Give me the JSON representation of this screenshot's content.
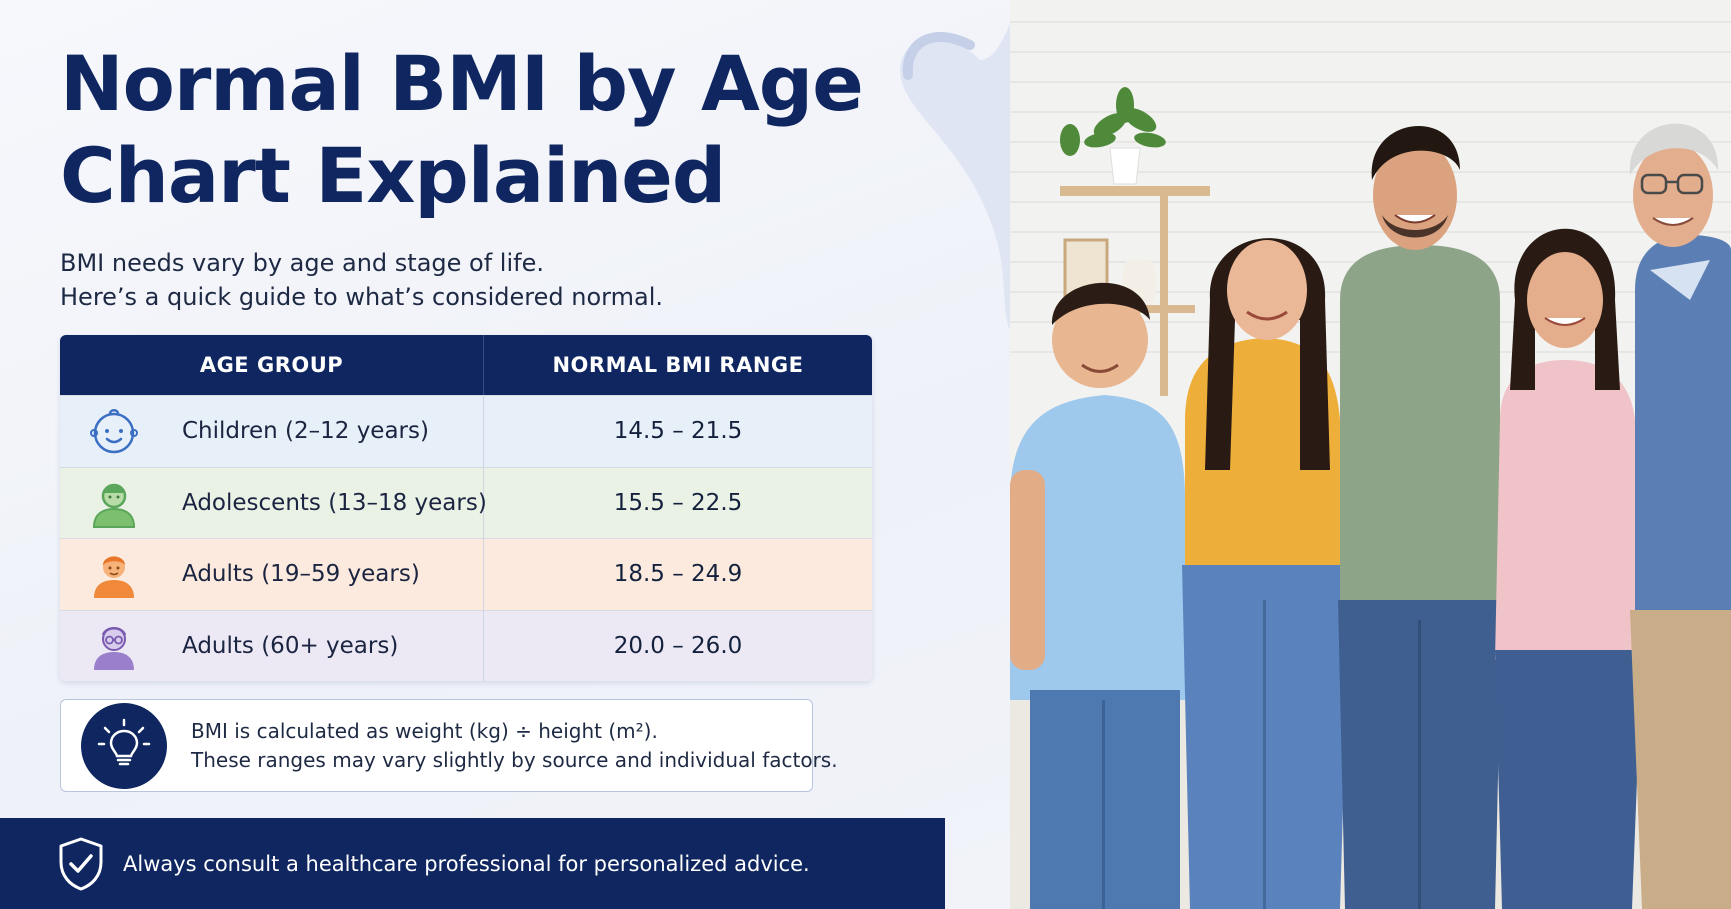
{
  "title_line1": "Normal BMI by Age",
  "title_line2": "Chart Explained",
  "subtitle_line1": "BMI needs vary by age and stage of life.",
  "subtitle_line2": "Here’s a quick guide to what’s considered normal.",
  "table": {
    "headers": [
      "AGE GROUP",
      "NORMAL BMI RANGE"
    ],
    "rows": [
      {
        "label": "Children (2–12 years)",
        "range": "14.5 – 21.5",
        "icon": "baby-face-icon",
        "color": "#3b6fc4"
      },
      {
        "label": "Adolescents (13–18 years)",
        "range": "15.5 – 22.5",
        "icon": "teen-person-icon",
        "color": "#5aa65a"
      },
      {
        "label": "Adults (19–59 years)",
        "range": "18.5 – 24.9",
        "icon": "adult-person-icon",
        "color": "#f08a3a"
      },
      {
        "label": "Adults (60+ years)",
        "range": "20.0 – 26.0",
        "icon": "senior-person-icon",
        "color": "#7a5bb0"
      }
    ]
  },
  "note": {
    "icon": "lightbulb-icon",
    "line1": "BMI is calculated as weight (kg) ÷ height (m²).",
    "line2": "These ranges may vary slightly by source and individual factors."
  },
  "footer": {
    "icon": "shield-check-icon",
    "text": "Always consult a healthcare professional for personalized advice."
  },
  "colors": {
    "navy": "#0f2660",
    "children_row": "#e7eff9",
    "adolescents_row": "#eaf2e6",
    "adults_row": "#fbeadd",
    "seniors_row": "#ece9f5"
  }
}
